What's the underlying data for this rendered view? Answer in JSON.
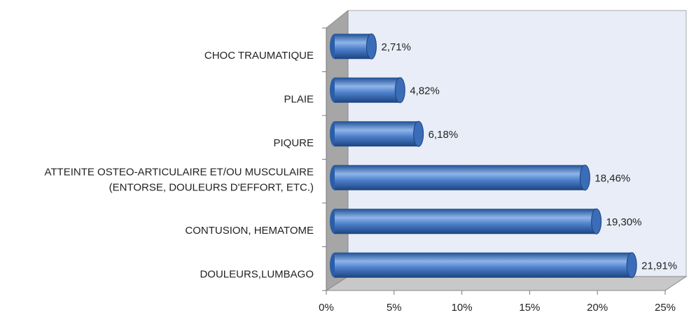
{
  "chart_data": {
    "type": "bar",
    "orientation": "horizontal",
    "categories": [
      "CHOC TRAUMATIQUE",
      "PLAIE",
      "PIQURE",
      [
        "ATTEINTE OSTEO-ARTICULAIRE ET/OU MUSCULAIRE",
        "(ENTORSE, DOULEURS D'EFFORT, ETC.)"
      ],
      "CONTUSION, HEMATOME",
      "DOULEURS,LUMBAGO"
    ],
    "values": [
      2.71,
      4.82,
      6.18,
      18.46,
      19.3,
      21.91
    ],
    "value_labels": [
      "2,71%",
      "4,82%",
      "6,18%",
      "18,46%",
      "19,30%",
      "21,91%"
    ],
    "color": "#3a6cb8",
    "xlim": [
      0,
      25
    ],
    "xticks": [
      {
        "value": 0,
        "label": "0%"
      },
      {
        "value": 5,
        "label": "5%"
      },
      {
        "value": 10,
        "label": "10%"
      },
      {
        "value": 15,
        "label": "15%"
      },
      {
        "value": 20,
        "label": "20%"
      },
      {
        "value": 25,
        "label": "25%"
      }
    ]
  }
}
